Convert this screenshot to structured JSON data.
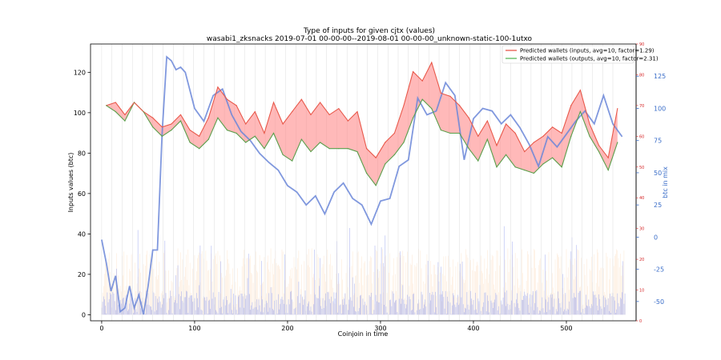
{
  "chart_data": {
    "type": "line",
    "title": "Type of inputs for given cjtx (values)",
    "subtitle": "wasabi1_zksnacks 2019-07-01 00-00-00--2019-08-01 00-00-00_unknown-static-100-1utxo",
    "xlabel": "Coinjoin in time",
    "ylabel": "Inputs values (btc)",
    "y2label": "btc in mix",
    "xlim": [
      -12,
      575
    ],
    "ylim": [
      -3,
      134
    ],
    "y_red_lim": [
      0,
      90
    ],
    "y_blue_lim": [
      -65,
      150
    ],
    "x_ticks": [
      0,
      100,
      200,
      300,
      400,
      500
    ],
    "y_ticks": [
      0,
      20,
      40,
      60,
      80,
      100,
      120
    ],
    "y_red_ticks": [
      0,
      10,
      20,
      30,
      40,
      50,
      60,
      70,
      80,
      90
    ],
    "y_blue_ticks": [
      -50,
      -25,
      0,
      25,
      50,
      75,
      100,
      125
    ],
    "legend_position": "top-right",
    "legend": [
      "Predicted wallets (inputs, avg=10, factor=1.29)",
      "Predicted wallets (outputs, avg=10, factor=2.31)"
    ],
    "series": [
      {
        "name": "Predicted wallets (inputs, avg=10, factor=1.29)",
        "axis": "red",
        "x": [
          5,
          15,
          25,
          35,
          45,
          55,
          65,
          75,
          85,
          95,
          105,
          115,
          125,
          135,
          145,
          155,
          165,
          175,
          185,
          195,
          205,
          215,
          225,
          235,
          245,
          255,
          265,
          275,
          285,
          295,
          305,
          315,
          325,
          335,
          345,
          355,
          365,
          375,
          385,
          395,
          405,
          415,
          425,
          435,
          445,
          455,
          465,
          475,
          485,
          495,
          505,
          515,
          525,
          535,
          545,
          555
        ],
        "y": [
          70,
          71,
          67,
          71,
          68,
          66,
          63,
          64,
          67,
          62,
          60,
          66,
          76,
          72,
          70,
          64,
          68,
          61,
          71,
          64,
          68,
          72,
          67,
          71,
          67,
          69,
          65,
          68,
          56,
          53,
          58,
          61,
          70,
          81,
          78,
          84,
          74,
          73,
          70,
          66,
          60,
          65,
          57,
          64,
          61,
          55,
          58,
          60,
          63,
          61,
          70,
          75,
          64,
          57,
          53,
          69
        ]
      },
      {
        "name": "Predicted wallets (outputs, avg=10, factor=2.31)",
        "axis": "red",
        "x": [
          5,
          15,
          25,
          35,
          45,
          55,
          65,
          75,
          85,
          95,
          105,
          115,
          125,
          135,
          145,
          155,
          165,
          175,
          185,
          195,
          205,
          215,
          225,
          235,
          245,
          255,
          265,
          275,
          285,
          295,
          305,
          315,
          325,
          335,
          345,
          355,
          365,
          375,
          385,
          395,
          405,
          415,
          425,
          435,
          445,
          455,
          465,
          475,
          485,
          495,
          505,
          515,
          525,
          535,
          545,
          555
        ],
        "y": [
          70,
          68,
          65,
          71,
          68,
          63,
          60,
          62,
          65,
          58,
          56,
          59,
          66,
          62,
          61,
          58,
          60,
          56,
          61,
          54,
          52,
          59,
          55,
          58,
          56,
          56,
          56,
          55,
          48,
          44,
          51,
          54,
          58,
          66,
          72,
          69,
          62,
          61,
          61,
          56,
          52,
          59,
          50,
          54,
          50,
          49,
          48,
          51,
          53,
          50,
          60,
          68,
          60,
          55,
          49,
          58
        ]
      },
      {
        "name": "btc in mix",
        "axis": "blue",
        "x": [
          0,
          5,
          10,
          15,
          20,
          25,
          30,
          35,
          40,
          45,
          50,
          55,
          60,
          65,
          70,
          75,
          80,
          85,
          90,
          100,
          110,
          120,
          130,
          140,
          150,
          160,
          170,
          180,
          190,
          200,
          210,
          220,
          230,
          240,
          250,
          260,
          270,
          280,
          290,
          300,
          310,
          320,
          330,
          340,
          350,
          360,
          370,
          380,
          390,
          400,
          410,
          420,
          430,
          440,
          450,
          460,
          470,
          480,
          490,
          500,
          510,
          520,
          530,
          540,
          550,
          560
        ],
        "y": [
          -2,
          -20,
          -42,
          -30,
          -58,
          -55,
          -38,
          -55,
          -45,
          -60,
          -38,
          -10,
          -10,
          80,
          140,
          137,
          130,
          132,
          128,
          100,
          90,
          110,
          115,
          95,
          82,
          75,
          65,
          58,
          52,
          40,
          35,
          25,
          32,
          18,
          35,
          42,
          30,
          25,
          10,
          28,
          30,
          55,
          60,
          108,
          95,
          98,
          120,
          110,
          60,
          92,
          100,
          98,
          88,
          95,
          85,
          72,
          55,
          78,
          70,
          80,
          90,
          98,
          88,
          110,
          88,
          78
        ]
      }
    ]
  }
}
